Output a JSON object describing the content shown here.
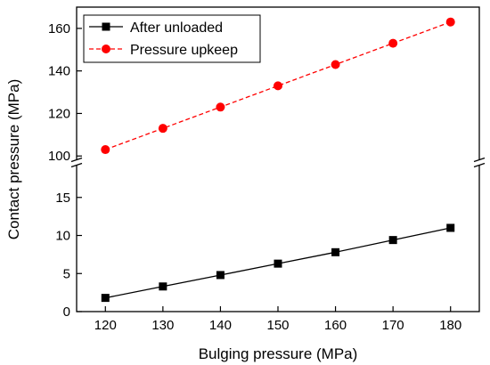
{
  "chart_data": {
    "type": "line",
    "xlabel": "Bulging pressure (MPa)",
    "ylabel": "Contact pressure (MPa)",
    "xlim": [
      115,
      185
    ],
    "x_ticks": [
      120,
      130,
      140,
      150,
      160,
      170,
      180
    ],
    "y_axis_broken": true,
    "y_segments": [
      {
        "ylim": [
          0,
          19.3
        ],
        "ticks": [
          0,
          5,
          10,
          15
        ]
      },
      {
        "ylim": [
          98,
          170
        ],
        "ticks": [
          100,
          120,
          140,
          160
        ]
      }
    ],
    "legend_position": "top-left",
    "x": [
      120,
      130,
      140,
      150,
      160,
      170,
      180
    ],
    "series": [
      {
        "name": "After unloaded",
        "values": [
          1.8,
          3.3,
          4.8,
          6.3,
          7.8,
          9.4,
          11.0
        ],
        "color": "#000000",
        "marker": "square",
        "line_style": "solid"
      },
      {
        "name": "Pressure upkeep",
        "values": [
          103,
          113,
          123,
          133,
          143,
          153,
          163
        ],
        "color": "#ff0000",
        "marker": "circle",
        "line_style": "dashed"
      }
    ]
  }
}
